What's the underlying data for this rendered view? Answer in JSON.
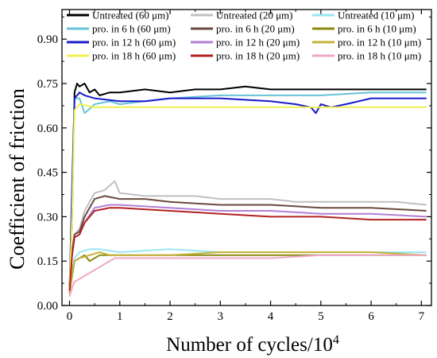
{
  "chart_data": {
    "type": "line",
    "xlabel": "Number of cycles/10",
    "xlabel_sup": "4",
    "ylabel": "Coefficient of  friction",
    "xlim": [
      -0.15,
      7.2
    ],
    "ylim": [
      0,
      1.0
    ],
    "xticks": [
      0,
      1,
      2,
      3,
      4,
      5,
      6,
      7
    ],
    "yticks": [
      0.0,
      0.15,
      0.3,
      0.45,
      0.6,
      0.75,
      0.9
    ],
    "ytick_labels": [
      "0.00",
      "0.15",
      "0.30",
      "0.45",
      "0.60",
      "0.75",
      "0.90"
    ],
    "grid": false,
    "legend_position": "top",
    "series": [
      {
        "name": "Untreated  (60 μm)",
        "color": "#000000",
        "points": [
          [
            0,
            0.05
          ],
          [
            0.05,
            0.3
          ],
          [
            0.1,
            0.72
          ],
          [
            0.15,
            0.75
          ],
          [
            0.2,
            0.74
          ],
          [
            0.3,
            0.75
          ],
          [
            0.4,
            0.72
          ],
          [
            0.5,
            0.73
          ],
          [
            0.6,
            0.71
          ],
          [
            0.8,
            0.72
          ],
          [
            1,
            0.72
          ],
          [
            1.5,
            0.73
          ],
          [
            2,
            0.72
          ],
          [
            2.5,
            0.73
          ],
          [
            3,
            0.73
          ],
          [
            3.5,
            0.74
          ],
          [
            4,
            0.73
          ],
          [
            4.5,
            0.73
          ],
          [
            5,
            0.73
          ],
          [
            5.5,
            0.73
          ],
          [
            6,
            0.73
          ],
          [
            6.5,
            0.73
          ],
          [
            7.1,
            0.73
          ]
        ]
      },
      {
        "name": "Untreated  (20 μm)",
        "color": "#c0c0c0",
        "points": [
          [
            0,
            0.05
          ],
          [
            0.05,
            0.18
          ],
          [
            0.1,
            0.24
          ],
          [
            0.2,
            0.26
          ],
          [
            0.3,
            0.32
          ],
          [
            0.5,
            0.38
          ],
          [
            0.7,
            0.39
          ],
          [
            0.9,
            0.42
          ],
          [
            1,
            0.38
          ],
          [
            1.5,
            0.37
          ],
          [
            2,
            0.37
          ],
          [
            2.5,
            0.37
          ],
          [
            3,
            0.36
          ],
          [
            3.5,
            0.36
          ],
          [
            4,
            0.36
          ],
          [
            4.5,
            0.35
          ],
          [
            5,
            0.35
          ],
          [
            5.5,
            0.35
          ],
          [
            6,
            0.35
          ],
          [
            6.5,
            0.35
          ],
          [
            7.1,
            0.34
          ]
        ]
      },
      {
        "name": "Untreated  (10 μm)",
        "color": "#99e6f5",
        "points": [
          [
            0,
            0.04
          ],
          [
            0.05,
            0.12
          ],
          [
            0.1,
            0.16
          ],
          [
            0.2,
            0.18
          ],
          [
            0.4,
            0.19
          ],
          [
            0.6,
            0.19
          ],
          [
            1,
            0.18
          ],
          [
            2,
            0.19
          ],
          [
            3,
            0.18
          ],
          [
            4,
            0.18
          ],
          [
            5,
            0.18
          ],
          [
            6,
            0.18
          ],
          [
            7.1,
            0.18
          ]
        ]
      },
      {
        "name": "pro. in 6 h  (60 μm)",
        "color": "#66c4d6",
        "points": [
          [
            0,
            0.05
          ],
          [
            0.05,
            0.35
          ],
          [
            0.1,
            0.7
          ],
          [
            0.2,
            0.7
          ],
          [
            0.3,
            0.65
          ],
          [
            0.5,
            0.68
          ],
          [
            0.8,
            0.69
          ],
          [
            1,
            0.68
          ],
          [
            1.5,
            0.69
          ],
          [
            2,
            0.7
          ],
          [
            3,
            0.71
          ],
          [
            4,
            0.71
          ],
          [
            5,
            0.71
          ],
          [
            6,
            0.72
          ],
          [
            7.1,
            0.72
          ]
        ]
      },
      {
        "name": "pro. in 6 h  (20 μm)",
        "color": "#6b4a3e",
        "points": [
          [
            0,
            0.05
          ],
          [
            0.05,
            0.18
          ],
          [
            0.1,
            0.24
          ],
          [
            0.2,
            0.25
          ],
          [
            0.3,
            0.3
          ],
          [
            0.5,
            0.36
          ],
          [
            0.7,
            0.37
          ],
          [
            1,
            0.36
          ],
          [
            1.5,
            0.36
          ],
          [
            2,
            0.35
          ],
          [
            3,
            0.34
          ],
          [
            4,
            0.34
          ],
          [
            5,
            0.33
          ],
          [
            6,
            0.33
          ],
          [
            7.1,
            0.32
          ]
        ]
      },
      {
        "name": "pro. in 6 h  (10 μm)",
        "color": "#8b8a10",
        "points": [
          [
            0,
            0.04
          ],
          [
            0.05,
            0.1
          ],
          [
            0.1,
            0.15
          ],
          [
            0.2,
            0.16
          ],
          [
            0.3,
            0.17
          ],
          [
            0.4,
            0.15
          ],
          [
            0.5,
            0.16
          ],
          [
            0.6,
            0.17
          ],
          [
            0.8,
            0.17
          ],
          [
            1,
            0.17
          ],
          [
            2,
            0.17
          ],
          [
            3,
            0.17
          ],
          [
            4,
            0.17
          ],
          [
            5,
            0.17
          ],
          [
            6,
            0.17
          ],
          [
            7.1,
            0.17
          ]
        ]
      },
      {
        "name": "pro. in 12 h (60 μm)",
        "color": "#1a1acc",
        "points": [
          [
            0,
            0.05
          ],
          [
            0.05,
            0.4
          ],
          [
            0.1,
            0.7
          ],
          [
            0.2,
            0.72
          ],
          [
            0.3,
            0.71
          ],
          [
            0.5,
            0.7
          ],
          [
            1,
            0.69
          ],
          [
            1.5,
            0.69
          ],
          [
            2,
            0.7
          ],
          [
            3,
            0.7
          ],
          [
            4,
            0.69
          ],
          [
            4.5,
            0.68
          ],
          [
            4.8,
            0.67
          ],
          [
            4.9,
            0.65
          ],
          [
            5,
            0.68
          ],
          [
            5.2,
            0.67
          ],
          [
            5.5,
            0.68
          ],
          [
            6,
            0.7
          ],
          [
            6.5,
            0.7
          ],
          [
            7.1,
            0.7
          ]
        ]
      },
      {
        "name": "pro. in 12 h (20 μm)",
        "color": "#b27fd6",
        "points": [
          [
            0,
            0.05
          ],
          [
            0.05,
            0.17
          ],
          [
            0.1,
            0.23
          ],
          [
            0.2,
            0.24
          ],
          [
            0.3,
            0.28
          ],
          [
            0.5,
            0.33
          ],
          [
            0.8,
            0.34
          ],
          [
            1,
            0.34
          ],
          [
            2,
            0.33
          ],
          [
            3,
            0.32
          ],
          [
            4,
            0.32
          ],
          [
            5,
            0.31
          ],
          [
            6,
            0.31
          ],
          [
            7.1,
            0.3
          ]
        ]
      },
      {
        "name": "pro. in 12 h (10 μm)",
        "color": "#c4b23a",
        "points": [
          [
            0,
            0.04
          ],
          [
            0.05,
            0.11
          ],
          [
            0.1,
            0.15
          ],
          [
            0.2,
            0.16
          ],
          [
            0.4,
            0.17
          ],
          [
            0.6,
            0.18
          ],
          [
            0.8,
            0.17
          ],
          [
            1,
            0.17
          ],
          [
            2,
            0.17
          ],
          [
            3,
            0.18
          ],
          [
            4,
            0.18
          ],
          [
            5,
            0.18
          ],
          [
            6,
            0.18
          ],
          [
            7.1,
            0.17
          ]
        ]
      },
      {
        "name": "pro. in 18 h (60 μm)",
        "color": "#f0f050",
        "points": [
          [
            0,
            0.05
          ],
          [
            0.05,
            0.3
          ],
          [
            0.1,
            0.66
          ],
          [
            0.2,
            0.68
          ],
          [
            0.5,
            0.67
          ],
          [
            1,
            0.67
          ],
          [
            2,
            0.67
          ],
          [
            3,
            0.67
          ],
          [
            4,
            0.67
          ],
          [
            5,
            0.67
          ],
          [
            6,
            0.67
          ],
          [
            7.1,
            0.67
          ]
        ]
      },
      {
        "name": "pro. in 18 h (20 μm)",
        "color": "#b22222",
        "points": [
          [
            0,
            0.05
          ],
          [
            0.05,
            0.17
          ],
          [
            0.1,
            0.23
          ],
          [
            0.2,
            0.24
          ],
          [
            0.3,
            0.28
          ],
          [
            0.5,
            0.32
          ],
          [
            0.8,
            0.33
          ],
          [
            1,
            0.33
          ],
          [
            2,
            0.32
          ],
          [
            3,
            0.31
          ],
          [
            4,
            0.3
          ],
          [
            5,
            0.3
          ],
          [
            6,
            0.29
          ],
          [
            7.1,
            0.29
          ]
        ]
      },
      {
        "name": "pro. in 18 h (10 μm)",
        "color": "#f0a8c8",
        "points": [
          [
            0,
            0.03
          ],
          [
            0.05,
            0.06
          ],
          [
            0.1,
            0.08
          ],
          [
            0.3,
            0.1
          ],
          [
            0.5,
            0.12
          ],
          [
            0.7,
            0.14
          ],
          [
            0.9,
            0.16
          ],
          [
            1,
            0.16
          ],
          [
            2,
            0.16
          ],
          [
            3,
            0.16
          ],
          [
            4,
            0.16
          ],
          [
            5,
            0.17
          ],
          [
            6,
            0.17
          ],
          [
            7.1,
            0.17
          ]
        ]
      }
    ]
  }
}
